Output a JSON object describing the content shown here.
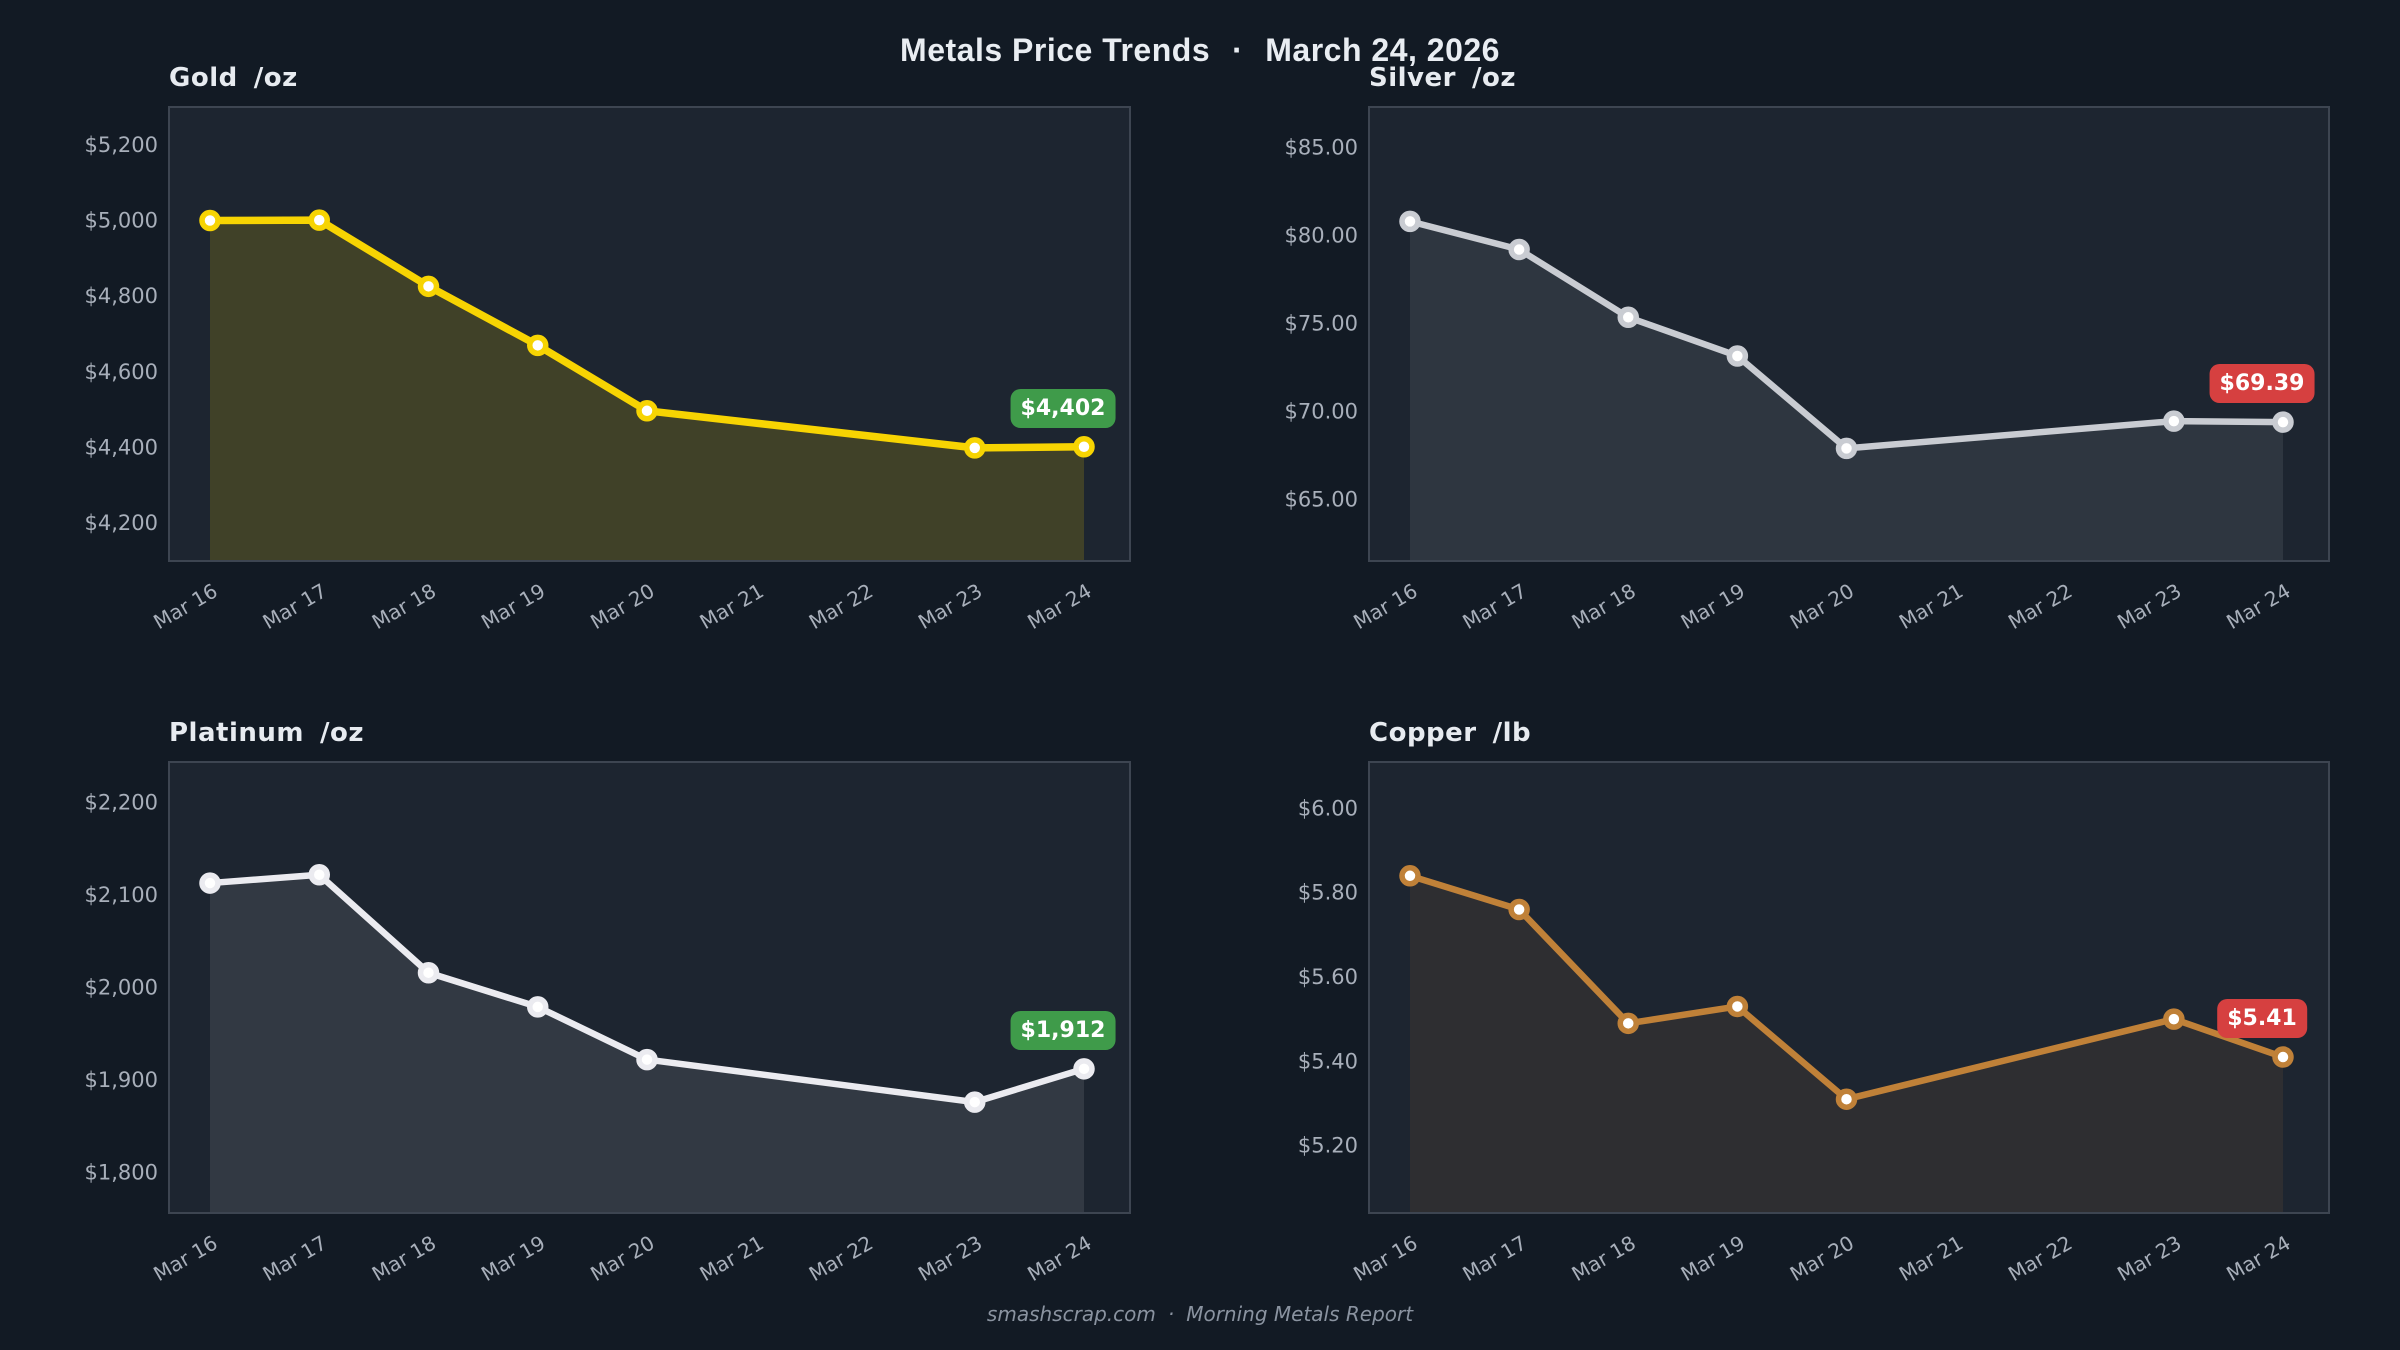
{
  "header": {
    "title": "Metals Price Trends",
    "separator": "·",
    "date": "March 24, 2026"
  },
  "footer": {
    "site": "smashscrap.com",
    "separator": "·",
    "label": "Morning Metals Report"
  },
  "colors": {
    "page_bg": "#121a24",
    "plot_bg": "#1d2530",
    "plot_border": "#3d4551",
    "tick_text": "#a8afba",
    "title_text": "#e7ebf0",
    "header_text": "#e9edf2",
    "footer_text": "#8a93a0",
    "badge_text": "#ffffff",
    "badge_up": "#3f9b4a",
    "badge_down": "#d64040",
    "dot_fill": "#ffffff"
  },
  "chart_data": [
    {
      "id": "gold",
      "type": "area",
      "title": "Gold",
      "unit": "/oz",
      "categories": [
        "Mar 16",
        "Mar 17",
        "Mar 18",
        "Mar 19",
        "Mar 20",
        "Mar 21",
        "Mar 22",
        "Mar 23",
        "Mar 24"
      ],
      "values": [
        5000,
        5001,
        4826,
        4670,
        4497,
        null,
        null,
        4399,
        4402
      ],
      "ylim": [
        4100,
        5300
      ],
      "y_ticks": [
        {
          "label": "$5,200",
          "value": 5200
        },
        {
          "label": "$5,000",
          "value": 5000
        },
        {
          "label": "$4,800",
          "value": 4800
        },
        {
          "label": "$4,600",
          "value": 4600
        },
        {
          "label": "$4,400",
          "value": 4400
        },
        {
          "label": "$4,200",
          "value": 4200
        }
      ],
      "line_color": "#f7d402",
      "fill_opacity": 0.16,
      "badge": {
        "text": "$4,402",
        "direction": "up"
      }
    },
    {
      "id": "silver",
      "type": "area",
      "title": "Silver",
      "unit": "/oz",
      "categories": [
        "Mar 16",
        "Mar 17",
        "Mar 18",
        "Mar 19",
        "Mar 20",
        "Mar 21",
        "Mar 22",
        "Mar 23",
        "Mar 24"
      ],
      "values": [
        80.8,
        79.2,
        75.35,
        73.15,
        67.9,
        null,
        null,
        69.45,
        69.39
      ],
      "ylim": [
        61.5,
        87.3
      ],
      "y_ticks": [
        {
          "label": "$85.00",
          "value": 85
        },
        {
          "label": "$80.00",
          "value": 80
        },
        {
          "label": "$75.00",
          "value": 75
        },
        {
          "label": "$70.00",
          "value": 70
        },
        {
          "label": "$65.00",
          "value": 65
        }
      ],
      "line_color": "#c9ccd2",
      "fill_opacity": 0.1,
      "badge": {
        "text": "$69.39",
        "direction": "down"
      }
    },
    {
      "id": "platinum",
      "type": "area",
      "title": "Platinum",
      "unit": "/oz",
      "categories": [
        "Mar 16",
        "Mar 17",
        "Mar 18",
        "Mar 19",
        "Mar 20",
        "Mar 21",
        "Mar 22",
        "Mar 23",
        "Mar 24"
      ],
      "values": [
        2113,
        2122,
        2016,
        1979,
        1922,
        null,
        null,
        1876,
        1912
      ],
      "ylim": [
        1756,
        2244
      ],
      "y_ticks": [
        {
          "label": "$2,200",
          "value": 2200
        },
        {
          "label": "$2,100",
          "value": 2100
        },
        {
          "label": "$2,000",
          "value": 2000
        },
        {
          "label": "$1,900",
          "value": 1900
        },
        {
          "label": "$1,800",
          "value": 1800
        }
      ],
      "line_color": "#ebebf0",
      "fill_opacity": 0.1,
      "badge": {
        "text": "$1,912",
        "direction": "up"
      }
    },
    {
      "id": "copper",
      "type": "area",
      "title": "Copper",
      "unit": "/lb",
      "categories": [
        "Mar 16",
        "Mar 17",
        "Mar 18",
        "Mar 19",
        "Mar 20",
        "Mar 21",
        "Mar 22",
        "Mar 23",
        "Mar 24"
      ],
      "values": [
        5.84,
        5.76,
        5.49,
        5.53,
        5.31,
        null,
        null,
        5.5,
        5.41
      ],
      "ylim": [
        5.04,
        6.11
      ],
      "y_ticks": [
        {
          "label": "$6.00",
          "value": 6.0
        },
        {
          "label": "$5.80",
          "value": 5.8
        },
        {
          "label": "$5.60",
          "value": 5.6
        },
        {
          "label": "$5.40",
          "value": 5.4
        },
        {
          "label": "$5.20",
          "value": 5.2
        }
      ],
      "line_color": "#c08138",
      "fill_opacity": 0.1,
      "badge": {
        "text": "$5.41",
        "direction": "down"
      }
    }
  ]
}
